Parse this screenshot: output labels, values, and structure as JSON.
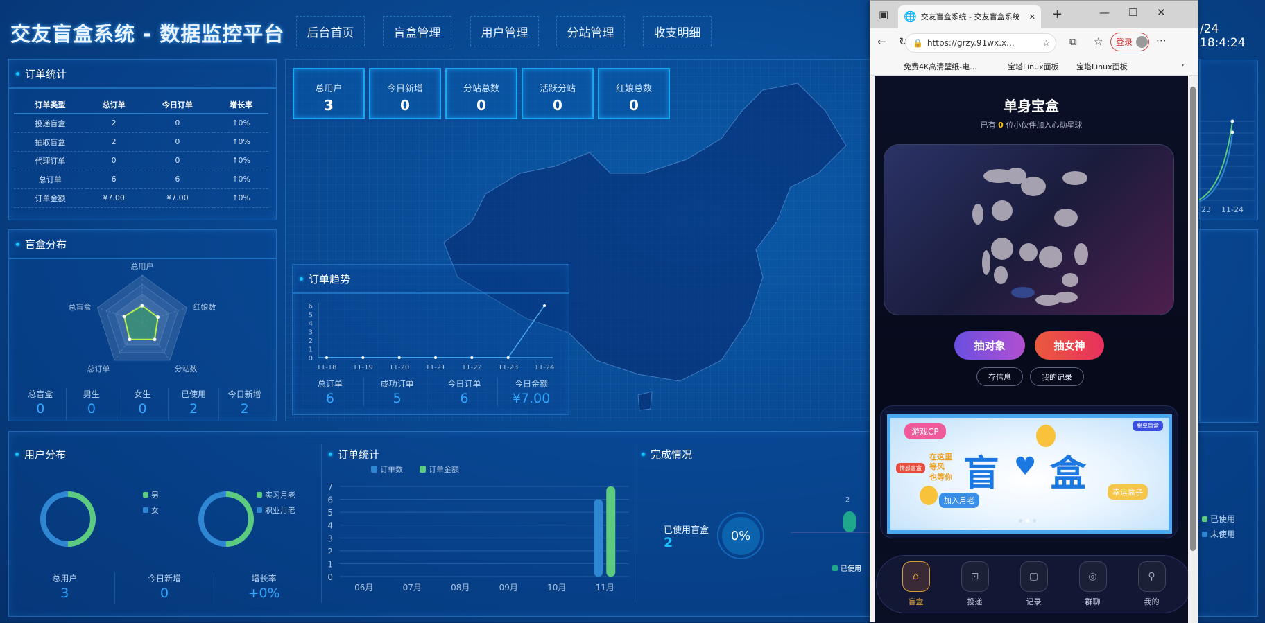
{
  "header": {
    "title": "交友盲盒系统 - 数据监控平台",
    "nav": [
      "后台首页",
      "盲盒管理",
      "用户管理",
      "分站管理",
      "收支明细"
    ],
    "time": "/24 18:4:24"
  },
  "order_stats": {
    "title": "订单统计",
    "headers": [
      "订单类型",
      "总订单",
      "今日订单",
      "增长率"
    ],
    "rows": [
      [
        "投递盲盒",
        "2",
        "0",
        "↑0%"
      ],
      [
        "抽取盲盒",
        "2",
        "0",
        "↑0%"
      ],
      [
        "代理订单",
        "0",
        "0",
        "↑0%"
      ],
      [
        "总订单",
        "6",
        "6",
        "↑0%"
      ],
      [
        "订单金额",
        "¥7.00",
        "¥7.00",
        "↑0%"
      ]
    ]
  },
  "box_dist": {
    "title": "盲盒分布",
    "radar_labels": [
      "总用户",
      "红娘数",
      "分站数",
      "总订单",
      "总盲盒"
    ],
    "stats": [
      {
        "label": "总盲盒",
        "value": "0"
      },
      {
        "label": "男生",
        "value": "0"
      },
      {
        "label": "女生",
        "value": "0"
      },
      {
        "label": "已使用",
        "value": "2"
      },
      {
        "label": "今日新增",
        "value": "2"
      }
    ]
  },
  "cards": [
    {
      "label": "总用户",
      "value": "3"
    },
    {
      "label": "今日新增",
      "value": "0"
    },
    {
      "label": "分站总数",
      "value": "0"
    },
    {
      "label": "活跃分站",
      "value": "0"
    },
    {
      "label": "红娘总数",
      "value": "0"
    }
  ],
  "trend": {
    "title": "订单趋势",
    "stats": [
      {
        "label": "总订单",
        "value": "6"
      },
      {
        "label": "成功订单",
        "value": "5"
      },
      {
        "label": "今日订单",
        "value": "6"
      },
      {
        "label": "今日金额",
        "value": "¥7.00"
      }
    ]
  },
  "user_dist": {
    "title": "用户分布",
    "legend1": [
      "男",
      "女"
    ],
    "legend2": [
      "实习月老",
      "职业月老"
    ],
    "stats": [
      {
        "label": "总用户",
        "value": "3"
      },
      {
        "label": "今日新增",
        "value": "0"
      },
      {
        "label": "增长率",
        "value": "+0%"
      }
    ]
  },
  "order_chart": {
    "title": "订单统计"
  },
  "completion": {
    "title": "完成情况",
    "used_label": "已使用盲盒",
    "used_value": "2",
    "percent": "0%",
    "bar_label": "2",
    "legend": [
      "已使用"
    ],
    "right_legend": [
      "已使用",
      "未使用"
    ]
  },
  "right_chart": {
    "x_labels": [
      "23",
      "11-24"
    ]
  },
  "browser": {
    "tab_title": "交友盲盒系统 - 交友盲盒系统",
    "url": "https://grzy.91wx.x...",
    "login": "登录",
    "bookmarks": [
      "免费4K高清壁纸-电...",
      "宝塔Linux面板",
      "宝塔Linux面板"
    ],
    "page": {
      "title": "单身宝盒",
      "subtitle_pre": "已有 ",
      "count": "0",
      "subtitle_post": " 位小伙伴加入心动星球",
      "btn1": "抽对象",
      "btn2": "抽女神",
      "btn3": "存信息",
      "btn4": "我的记录",
      "banner": {
        "main1": "盲",
        "main2": "盒",
        "tags": [
          "游戏CP",
          "情感盲盒",
          "脱单盲盒",
          "加入月老",
          "幸运盒子"
        ],
        "slogan": "在这里 等风 也等你"
      },
      "nav": [
        {
          "label": "盲盒",
          "icon": "home-icon"
        },
        {
          "label": "投递",
          "icon": "send-icon"
        },
        {
          "label": "记录",
          "icon": "record-icon"
        },
        {
          "label": "群聊",
          "icon": "group-icon"
        },
        {
          "label": "我的",
          "icon": "user-icon"
        }
      ]
    }
  },
  "chart_data": [
    {
      "type": "line",
      "title": "订单趋势",
      "x": [
        "11-18",
        "11-19",
        "11-20",
        "11-21",
        "11-22",
        "11-23",
        "11-24"
      ],
      "series": [
        {
          "values": [
            0,
            0,
            0,
            0,
            0,
            0,
            6
          ]
        }
      ],
      "ylim": [
        0,
        6
      ],
      "yticks": [
        0,
        1,
        2,
        3,
        4,
        5,
        6
      ]
    },
    {
      "type": "bar",
      "title": "订单统计",
      "categories": [
        "06月",
        "07月",
        "08月",
        "09月",
        "10月",
        "11月"
      ],
      "series": [
        {
          "name": "订单数",
          "values": [
            0,
            0,
            0,
            0,
            0,
            6
          ],
          "color": "#2f86d2"
        },
        {
          "name": "订单金额",
          "values": [
            0,
            0,
            0,
            0,
            0,
            7
          ],
          "color": "#5ccb7f"
        }
      ],
      "ylim": [
        0,
        7
      ],
      "yticks": [
        0,
        1,
        2,
        3,
        4,
        5,
        6,
        7
      ],
      "legend": "top"
    },
    {
      "type": "radar",
      "axes": [
        "总用户",
        "红娘数",
        "分站数",
        "总订单",
        "总盲盒"
      ]
    },
    {
      "type": "pie",
      "series": [
        {
          "name": "男",
          "value": 1,
          "color": "#5ccb7f"
        },
        {
          "name": "女",
          "value": 1,
          "color": "#2f86d2"
        }
      ]
    },
    {
      "type": "pie",
      "series": [
        {
          "name": "实习月老",
          "value": 1,
          "color": "#5ccb7f"
        },
        {
          "name": "职业月老",
          "value": 1,
          "color": "#2f86d2"
        }
      ]
    }
  ],
  "colors": {
    "accent": "#19c0ff",
    "yellow": "#f4e21a",
    "red": "#ff5a35",
    "green": "#5ccb7f",
    "blue": "#2f86d2"
  }
}
